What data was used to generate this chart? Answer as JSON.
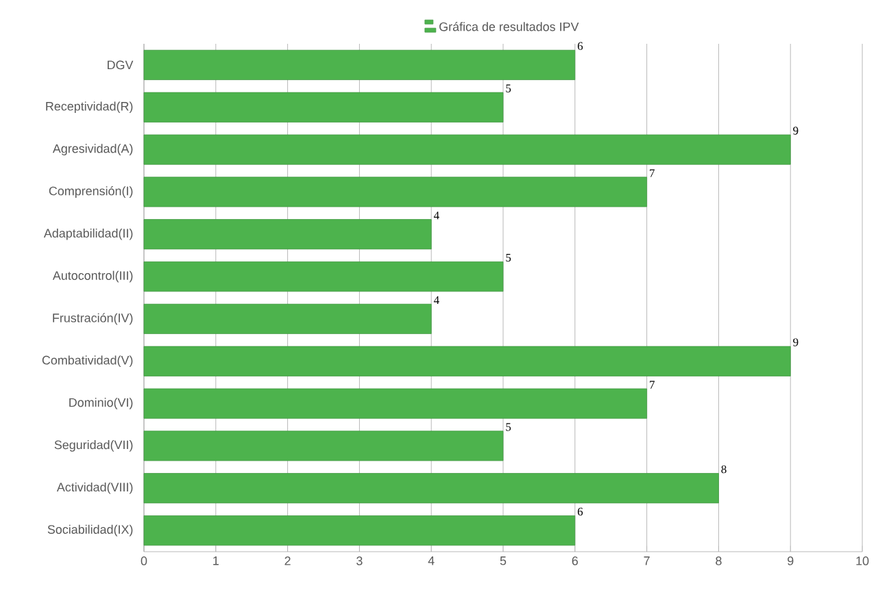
{
  "chart_data": {
    "type": "bar",
    "orientation": "horizontal",
    "categories": [
      "DGV",
      "Receptividad(R)",
      "Agresividad(A)",
      "Comprensión(I)",
      "Adaptabilidad(II)",
      "Autocontrol(III)",
      "Frustración(IV)",
      "Combatividad(V)",
      "Dominio(VI)",
      "Seguridad(VII)",
      "Actividad(VIII)",
      "Sociabilidad(IX)"
    ],
    "series": [
      {
        "name": "Gráfica de resultados IPV",
        "color": "#4db34d",
        "values": [
          6,
          5,
          9,
          7,
          4,
          5,
          4,
          9,
          7,
          5,
          8,
          6
        ]
      }
    ],
    "xlim": [
      0,
      10
    ],
    "xticks": [
      0,
      1,
      2,
      3,
      4,
      5,
      6,
      7,
      8,
      9,
      10
    ],
    "grid": "x",
    "legend": "top",
    "data_labels": true
  }
}
